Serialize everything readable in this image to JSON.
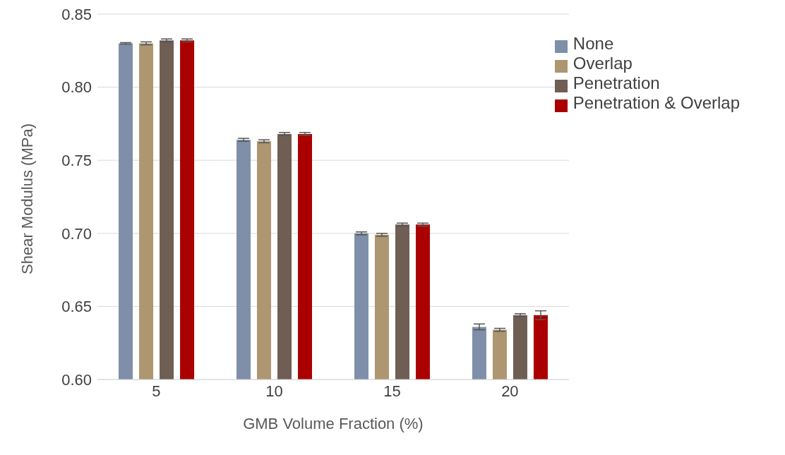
{
  "chart_data": {
    "type": "bar",
    "xlabel": "GMB Volume Fraction (%)",
    "ylabel": "Shear Modulus (MPa)",
    "categories": [
      "5",
      "10",
      "15",
      "20"
    ],
    "series": [
      {
        "name": "None",
        "color": "#7f8fa9",
        "values": [
          0.83,
          0.764,
          0.7,
          0.636
        ],
        "errors": [
          0.0005,
          0.001,
          0.001,
          0.002
        ]
      },
      {
        "name": "Overlap",
        "color": "#ad9670",
        "values": [
          0.83,
          0.763,
          0.699,
          0.634
        ],
        "errors": [
          0.001,
          0.001,
          0.001,
          0.001
        ]
      },
      {
        "name": "Penetration",
        "color": "#6f5e53",
        "values": [
          0.832,
          0.768,
          0.706,
          0.644
        ],
        "errors": [
          0.001,
          0.001,
          0.001,
          0.001
        ]
      },
      {
        "name": "Penetration & Overlap",
        "color": "#aa0000",
        "values": [
          0.832,
          0.768,
          0.706,
          0.644
        ],
        "errors": [
          0.001,
          0.001,
          0.001,
          0.003
        ]
      }
    ],
    "ylim": [
      0.6,
      0.85
    ],
    "yticks": [
      {
        "value": 0.6,
        "label": "0.60"
      },
      {
        "value": 0.65,
        "label": "0.65"
      },
      {
        "value": 0.7,
        "label": "0.70"
      },
      {
        "value": 0.75,
        "label": "0.75"
      },
      {
        "value": 0.8,
        "label": "0.80"
      },
      {
        "value": 0.85,
        "label": "0.85"
      }
    ],
    "grid": "y",
    "legend": "top right"
  }
}
